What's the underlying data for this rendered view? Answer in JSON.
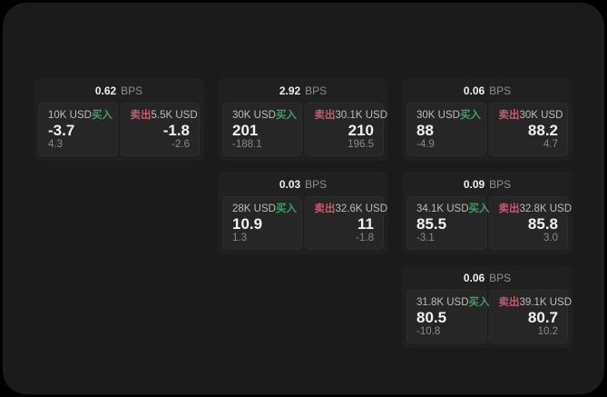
{
  "labels": {
    "bps_unit": "BPS",
    "buy": "买入",
    "sell": "卖出"
  },
  "colors": {
    "buy_green": "#3f9e64",
    "sell_red": "#c75a6e",
    "window_bg": "#1b1b1b",
    "card_bg": "#202020",
    "panel_bg": "#262626"
  },
  "cards": [
    {
      "bps": "0.62",
      "buy": {
        "notional": "10K USD",
        "price": "-3.7",
        "sub": "4.3"
      },
      "sell": {
        "notional": "5.5K USD",
        "price": "-1.8",
        "sub": "-2.6"
      }
    },
    {
      "bps": "2.92",
      "buy": {
        "notional": "30K USD",
        "price": "201",
        "sub": "-188.1"
      },
      "sell": {
        "notional": "30.1K USD",
        "price": "210",
        "sub": "196.5"
      }
    },
    {
      "bps": "0.06",
      "buy": {
        "notional": "30K USD",
        "price": "88",
        "sub": "-4.9"
      },
      "sell": {
        "notional": "30K USD",
        "price": "88.2",
        "sub": "4.7"
      }
    },
    {
      "bps": "0.03",
      "buy": {
        "notional": "28K USD",
        "price": "10.9",
        "sub": "1.3"
      },
      "sell": {
        "notional": "32.6K USD",
        "price": "11",
        "sub": "-1.8"
      }
    },
    {
      "bps": "0.09",
      "buy": {
        "notional": "34.1K USD",
        "price": "85.5",
        "sub": "-3.1"
      },
      "sell": {
        "notional": "32.8K USD",
        "price": "85.8",
        "sub": "3.0"
      }
    },
    {
      "bps": "0.06",
      "buy": {
        "notional": "31.8K USD",
        "price": "80.5",
        "sub": "-10.8"
      },
      "sell": {
        "notional": "39.1K USD",
        "price": "80.7",
        "sub": "10.2"
      }
    }
  ]
}
